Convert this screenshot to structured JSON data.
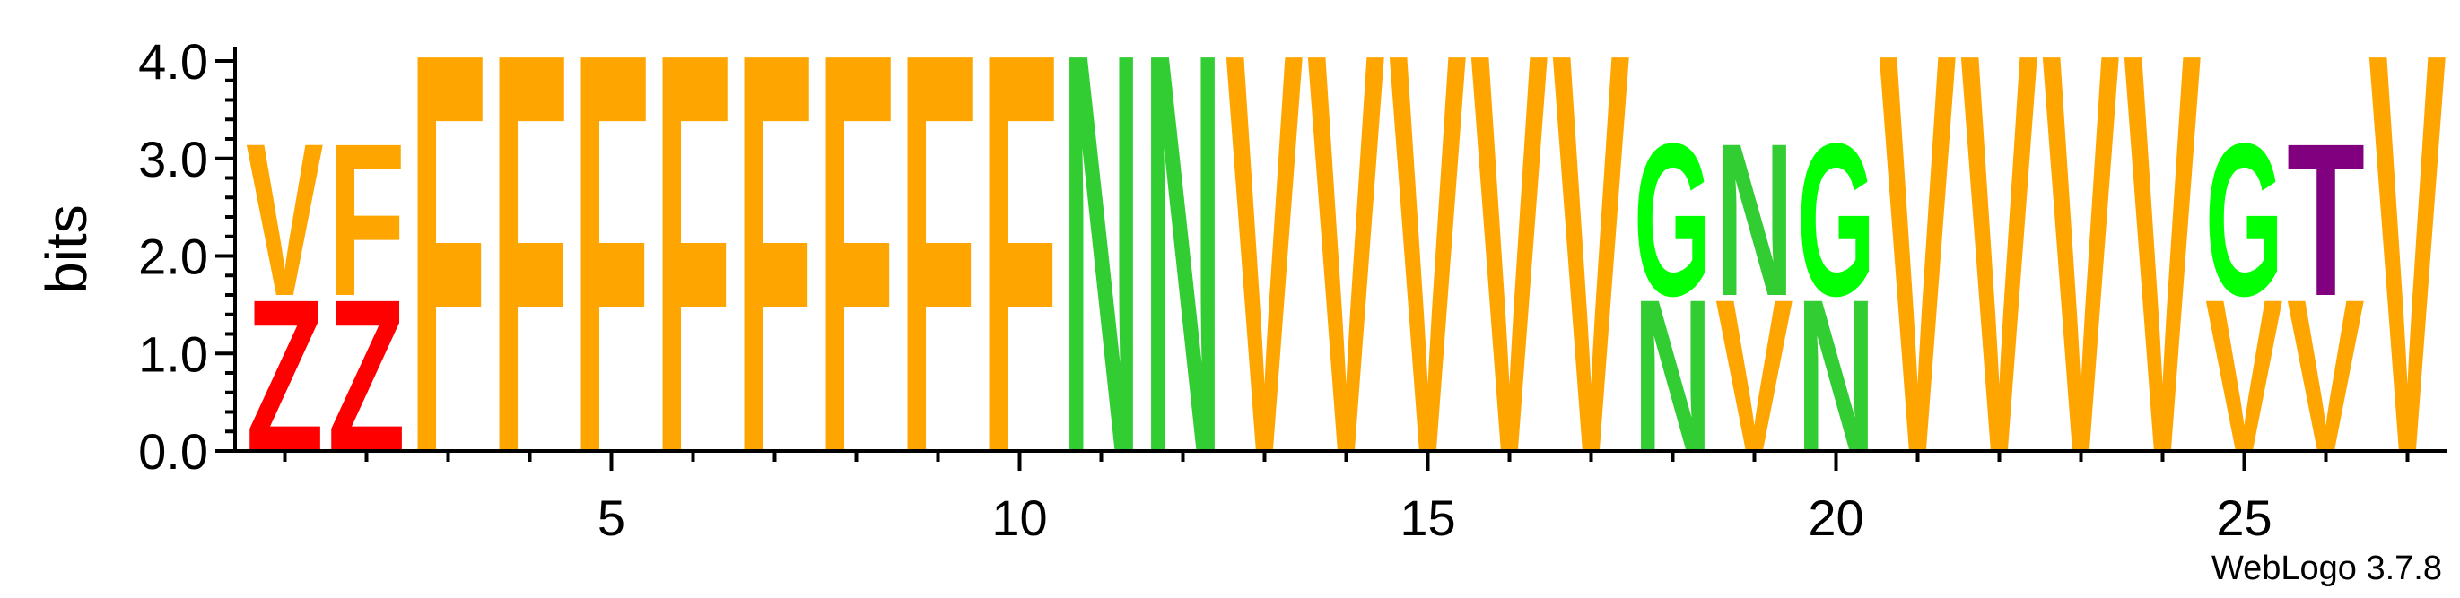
{
  "chart_data": {
    "type": "sequence-logo",
    "ylabel": "bits",
    "ylim": [
      0,
      4
    ],
    "y_ticks": [
      "0.0",
      "1.0",
      "2.0",
      "3.0",
      "4.0"
    ],
    "x_ticks": [
      "5",
      "10",
      "15",
      "20",
      "25"
    ],
    "positions": [
      {
        "pos": 1,
        "letters": [
          {
            "l": "Z",
            "bits": 1.6
          },
          {
            "l": "V",
            "bits": 1.6
          }
        ]
      },
      {
        "pos": 2,
        "letters": [
          {
            "l": "Z",
            "bits": 1.6
          },
          {
            "l": "F",
            "bits": 1.6
          }
        ]
      },
      {
        "pos": 3,
        "letters": [
          {
            "l": "F",
            "bits": 4.2
          }
        ]
      },
      {
        "pos": 4,
        "letters": [
          {
            "l": "F",
            "bits": 4.2
          }
        ]
      },
      {
        "pos": 5,
        "letters": [
          {
            "l": "F",
            "bits": 4.2
          }
        ]
      },
      {
        "pos": 6,
        "letters": [
          {
            "l": "F",
            "bits": 4.2
          }
        ]
      },
      {
        "pos": 7,
        "letters": [
          {
            "l": "F",
            "bits": 4.2
          }
        ]
      },
      {
        "pos": 8,
        "letters": [
          {
            "l": "F",
            "bits": 4.2
          }
        ]
      },
      {
        "pos": 9,
        "letters": [
          {
            "l": "F",
            "bits": 4.2
          }
        ]
      },
      {
        "pos": 10,
        "letters": [
          {
            "l": "F",
            "bits": 4.2
          }
        ]
      },
      {
        "pos": 11,
        "letters": [
          {
            "l": "N",
            "bits": 4.2
          }
        ]
      },
      {
        "pos": 12,
        "letters": [
          {
            "l": "N",
            "bits": 4.2
          }
        ]
      },
      {
        "pos": 13,
        "letters": [
          {
            "l": "V",
            "bits": 4.2
          }
        ]
      },
      {
        "pos": 14,
        "letters": [
          {
            "l": "V",
            "bits": 4.2
          }
        ]
      },
      {
        "pos": 15,
        "letters": [
          {
            "l": "V",
            "bits": 4.2
          }
        ]
      },
      {
        "pos": 16,
        "letters": [
          {
            "l": "V",
            "bits": 4.2
          }
        ]
      },
      {
        "pos": 17,
        "letters": [
          {
            "l": "V",
            "bits": 4.2
          }
        ]
      },
      {
        "pos": 18,
        "letters": [
          {
            "l": "N",
            "bits": 1.6
          },
          {
            "l": "G",
            "bits": 1.6
          }
        ]
      },
      {
        "pos": 19,
        "letters": [
          {
            "l": "V",
            "bits": 1.6
          },
          {
            "l": "N",
            "bits": 1.6
          }
        ]
      },
      {
        "pos": 20,
        "letters": [
          {
            "l": "N",
            "bits": 1.6
          },
          {
            "l": "G",
            "bits": 1.6
          }
        ]
      },
      {
        "pos": 21,
        "letters": [
          {
            "l": "V",
            "bits": 4.2
          }
        ]
      },
      {
        "pos": 22,
        "letters": [
          {
            "l": "V",
            "bits": 4.2
          }
        ]
      },
      {
        "pos": 23,
        "letters": [
          {
            "l": "V",
            "bits": 4.2
          }
        ]
      },
      {
        "pos": 24,
        "letters": [
          {
            "l": "V",
            "bits": 4.2
          }
        ]
      },
      {
        "pos": 25,
        "letters": [
          {
            "l": "V",
            "bits": 1.6
          },
          {
            "l": "G",
            "bits": 1.6
          }
        ]
      },
      {
        "pos": 26,
        "letters": [
          {
            "l": "V",
            "bits": 1.6
          },
          {
            "l": "T",
            "bits": 1.6
          }
        ]
      },
      {
        "pos": 27,
        "letters": [
          {
            "l": "V",
            "bits": 4.2
          }
        ]
      }
    ],
    "colors": {
      "F": "#FFA500",
      "V": "#FFA500",
      "Z": "#FF0000",
      "N": "#32CD32",
      "G": "#00FF00",
      "T": "#800080"
    },
    "credit": "WebLogo 3.7.8"
  }
}
